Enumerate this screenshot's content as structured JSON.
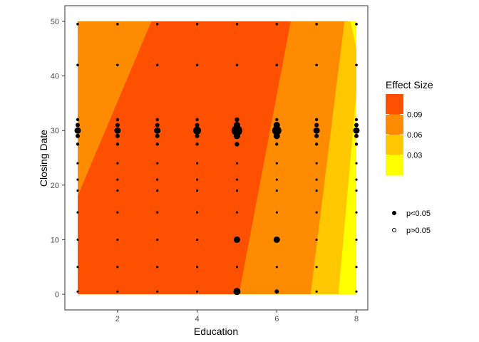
{
  "chart_data": {
    "type": "heatmap",
    "xlabel": "Education",
    "ylabel": "Closing Date",
    "xlim": [
      1,
      8
    ],
    "ylim": [
      0,
      50
    ],
    "x_ticks": [
      2,
      4,
      6,
      8
    ],
    "y_ticks": [
      0,
      10,
      20,
      30,
      40,
      50
    ],
    "grid": false,
    "background": "#ffffff",
    "fill_legend": {
      "title": "Effect Size",
      "placement": "right",
      "labels": [
        "0.09",
        "0.06",
        "0.03"
      ],
      "colors": [
        "#ff5000",
        "#ff8c00",
        "#ffc800",
        "#ffff00"
      ]
    },
    "point_legend": {
      "entries": [
        {
          "label": "p<0.05",
          "filled": true
        },
        {
          "label": "p>0.05",
          "filled": false
        }
      ]
    },
    "effect_bands": [
      {
        "level": 4,
        "color": "#ff8c00",
        "boundary_at_y0": 1.0,
        "boundary_at_y50": 1.0,
        "note": "left edge"
      },
      {
        "level": 3,
        "color": "#ff5000",
        "boundary_at_y0": 1.0,
        "boundary_at_y18": 1.0,
        "boundary_at_y50": 2.9
      },
      {
        "level": 2,
        "color": "#ff8c00",
        "boundary_at_y0": 5.1,
        "boundary_at_y50": 6.3
      },
      {
        "level": 1,
        "color": "#ffc800",
        "boundary_at_y0": 6.9,
        "boundary_at_y50": 7.7
      },
      {
        "level": 0,
        "color": "#ffff00",
        "boundary_at_y0": 7.6,
        "boundary_at_y50": 8.0
      }
    ],
    "points": {
      "x_values": [
        1,
        2,
        3,
        4,
        5,
        6,
        7,
        8
      ],
      "y_values": [
        0.5,
        5,
        10,
        15,
        19,
        21,
        24,
        27.5,
        29,
        30,
        31,
        32,
        42,
        49.5
      ],
      "significant": true,
      "sizes_note": "largest points at Closing Date 30 and Education 5-6"
    }
  }
}
